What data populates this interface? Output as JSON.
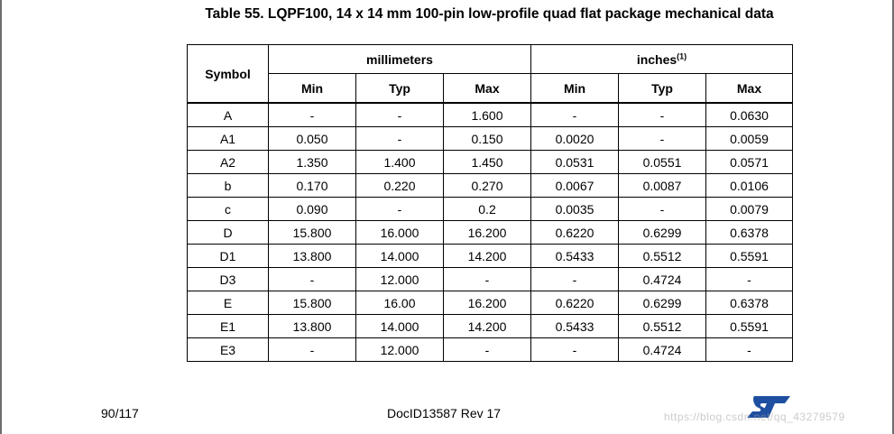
{
  "title": "Table 55. LQPF100, 14 x 14 mm 100-pin low-profile quad flat package mechanical data",
  "table": {
    "header_symbol": "Symbol",
    "group_mm": "millimeters",
    "group_inches": "inches",
    "group_inches_note": "(1)",
    "sub_headers": [
      "Min",
      "Typ",
      "Max",
      "Min",
      "Typ",
      "Max"
    ],
    "rows": [
      [
        "A",
        "-",
        "-",
        "1.600",
        "-",
        "-",
        "0.0630"
      ],
      [
        "A1",
        "0.050",
        "-",
        "0.150",
        "0.0020",
        "-",
        "0.0059"
      ],
      [
        "A2",
        "1.350",
        "1.400",
        "1.450",
        "0.0531",
        "0.0551",
        "0.0571"
      ],
      [
        "b",
        "0.170",
        "0.220",
        "0.270",
        "0.0067",
        "0.0087",
        "0.0106"
      ],
      [
        "c",
        "0.090",
        "-",
        "0.2",
        "0.0035",
        "-",
        "0.0079"
      ],
      [
        "D",
        "15.800",
        "16.000",
        "16.200",
        "0.6220",
        "0.6299",
        "0.6378"
      ],
      [
        "D1",
        "13.800",
        "14.000",
        "14.200",
        "0.5433",
        "0.5512",
        "0.5591"
      ],
      [
        "D3",
        "-",
        "12.000",
        "-",
        "-",
        "0.4724",
        "-"
      ],
      [
        "E",
        "15.800",
        "16.00",
        "16.200",
        "0.6220",
        "0.6299",
        "0.6378"
      ],
      [
        "E1",
        "13.800",
        "14.000",
        "14.200",
        "0.5433",
        "0.5512",
        "0.5591"
      ],
      [
        "E3",
        "-",
        "12.000",
        "-",
        "-",
        "0.4724",
        "-"
      ]
    ]
  },
  "footer": {
    "page": "90/117",
    "doc_id": "DocID13587 Rev 17",
    "watermark": "https://blog.csdn.net/qq_43279579"
  },
  "logo": {
    "name": "st-logo-icon",
    "color": "#1e4fa0"
  }
}
